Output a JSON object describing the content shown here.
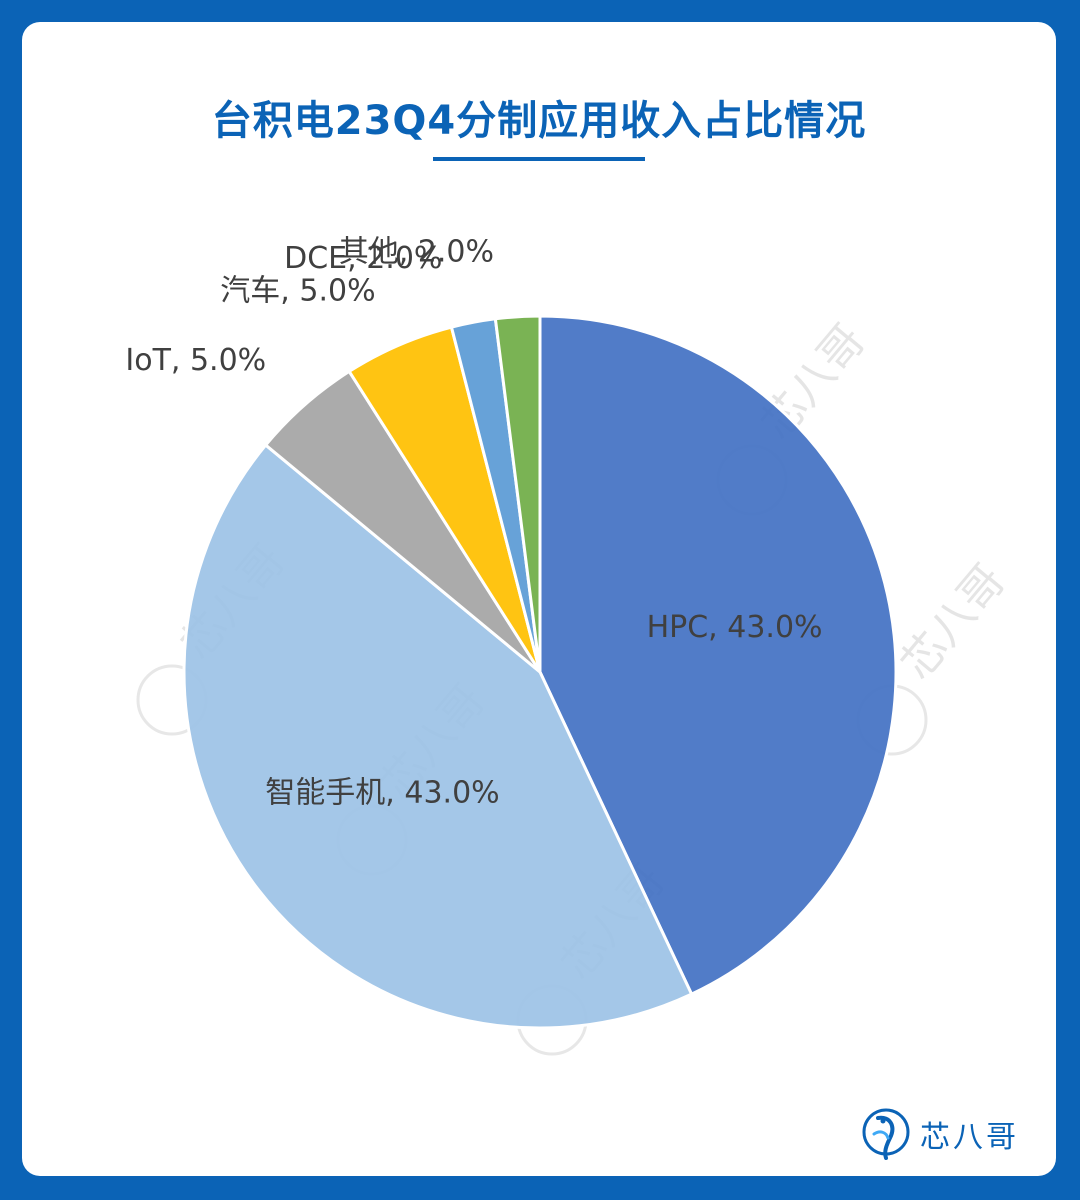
{
  "title": "台积电23Q4分制应用收入占比情况",
  "brand": {
    "name": "芯八哥",
    "logo_icon": "bird-logo-icon"
  },
  "watermark_text": "芯八哥",
  "colors": {
    "background": "#0b63b6",
    "title": "#0b63b6",
    "HPC": "#4472c4",
    "智能手机": "#9dc3e6",
    "IoT": "#a5a5a5",
    "汽车": "#ffc000",
    "DCE": "#5b9bd5",
    "其他": "#70ad47"
  },
  "chart_data": {
    "type": "pie",
    "title": "台积电23Q4分制应用收入占比情况",
    "unit": "%",
    "slices": [
      {
        "name": "HPC",
        "value": 43.0,
        "label": "HPC, 43.0%"
      },
      {
        "name": "智能手机",
        "value": 43.0,
        "label": "智能手机, 43.0%"
      },
      {
        "name": "IoT",
        "value": 5.0,
        "label": "IoT, 5.0%"
      },
      {
        "name": "汽车",
        "value": 5.0,
        "label": "汽车, 5.0%"
      },
      {
        "name": "DCE",
        "value": 2.0,
        "label": "DCE, 2.0%"
      },
      {
        "name": "其他",
        "value": 2.0,
        "label": "其他, 2.0%"
      }
    ]
  }
}
